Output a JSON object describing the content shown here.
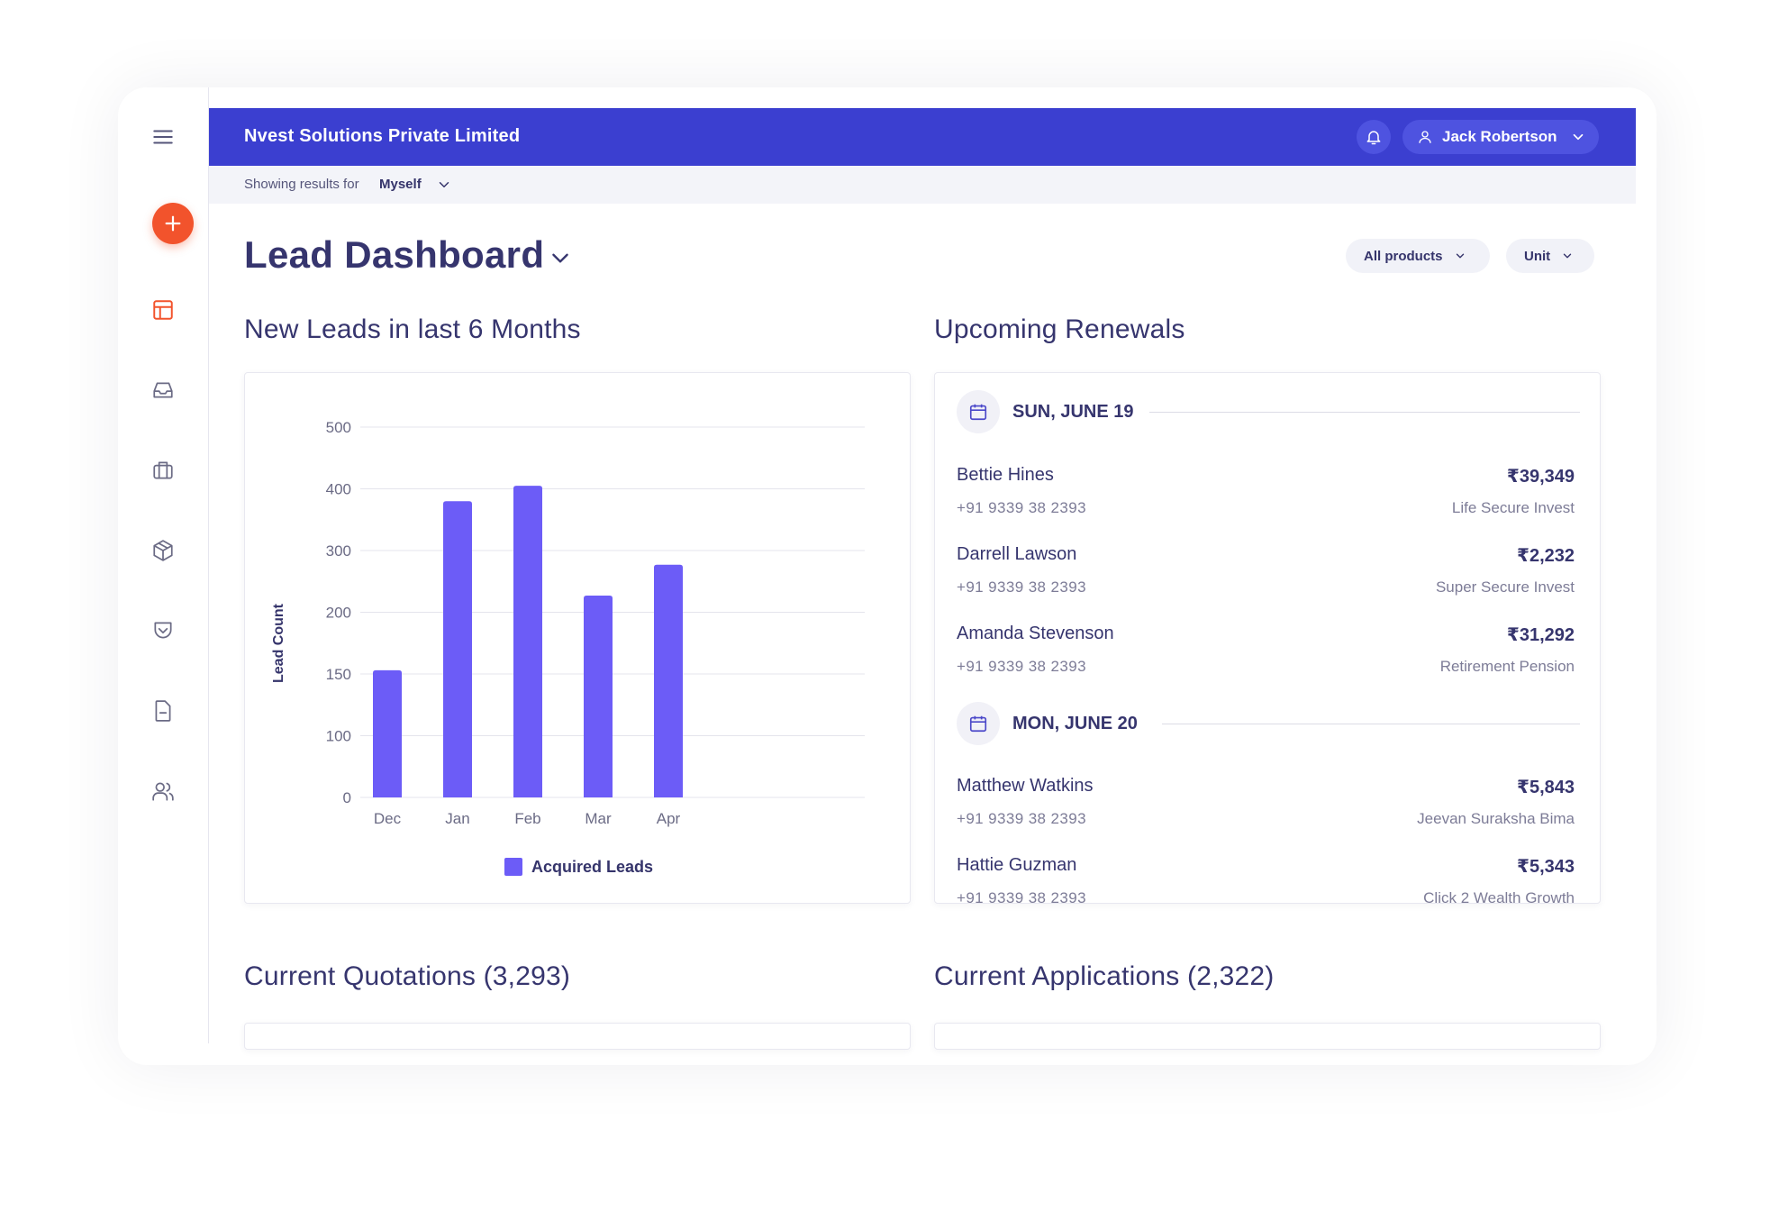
{
  "header": {
    "company": "Nvest Solutions Private Limited",
    "user_name": "Jack Robertson",
    "showing_label": "Showing results for",
    "showing_value": "Myself"
  },
  "page": {
    "title": "Lead Dashboard",
    "filter_products": "All products",
    "filter_unit": "Unit"
  },
  "sections": {
    "new_leads": "New Leads in last 6 Months",
    "renewals": "Upcoming Renewals",
    "quotations": "Current Quotations (3,293)",
    "applications": "Current Applications (2,322)"
  },
  "sidebar": {
    "icons": [
      "menu-icon",
      "add-icon",
      "dashboard-icon",
      "inbox-icon",
      "briefcase-icon",
      "package-icon",
      "pocket-icon",
      "document-icon",
      "users-icon"
    ]
  },
  "colors": {
    "topbar": "#3b3fd0",
    "bar": "#6c5cf7",
    "accent": "#f2532c",
    "text": "#36356e"
  },
  "chart_data": {
    "type": "bar",
    "categories": [
      "Dec",
      "Jan",
      "Feb",
      "Mar",
      "Apr"
    ],
    "series": [
      {
        "name": "Acquired Leads",
        "values": [
          153,
          380,
          405,
          227,
          277
        ]
      }
    ],
    "y_ticks": [
      "0",
      "100",
      "150",
      "200",
      "300",
      "400",
      "500"
    ],
    "ylabel": "Lead Count",
    "xlabel": "",
    "grid": true,
    "legend": "bottom-center"
  },
  "renewals": [
    {
      "date": "SUN, JUNE 19",
      "items": [
        {
          "name": "Bettie Hines",
          "phone": "+91 9339 38 2393",
          "amount": "₹39,349",
          "product": "Life Secure Invest"
        },
        {
          "name": "Darrell Lawson",
          "phone": "+91 9339 38 2393",
          "amount": "₹2,232",
          "product": "Super Secure Invest"
        },
        {
          "name": "Amanda Stevenson",
          "phone": "+91 9339 38 2393",
          "amount": "₹31,292",
          "product": "Retirement Pension"
        }
      ]
    },
    {
      "date": "MON, JUNE 20",
      "items": [
        {
          "name": "Matthew Watkins",
          "phone": "+91 9339 38 2393",
          "amount": "₹5,843",
          "product": "Jeevan Suraksha Bima"
        },
        {
          "name": "Hattie Guzman",
          "phone": "+91 9339 38 2393",
          "amount": "₹5,343",
          "product": "Click 2 Wealth Growth"
        }
      ]
    }
  ]
}
